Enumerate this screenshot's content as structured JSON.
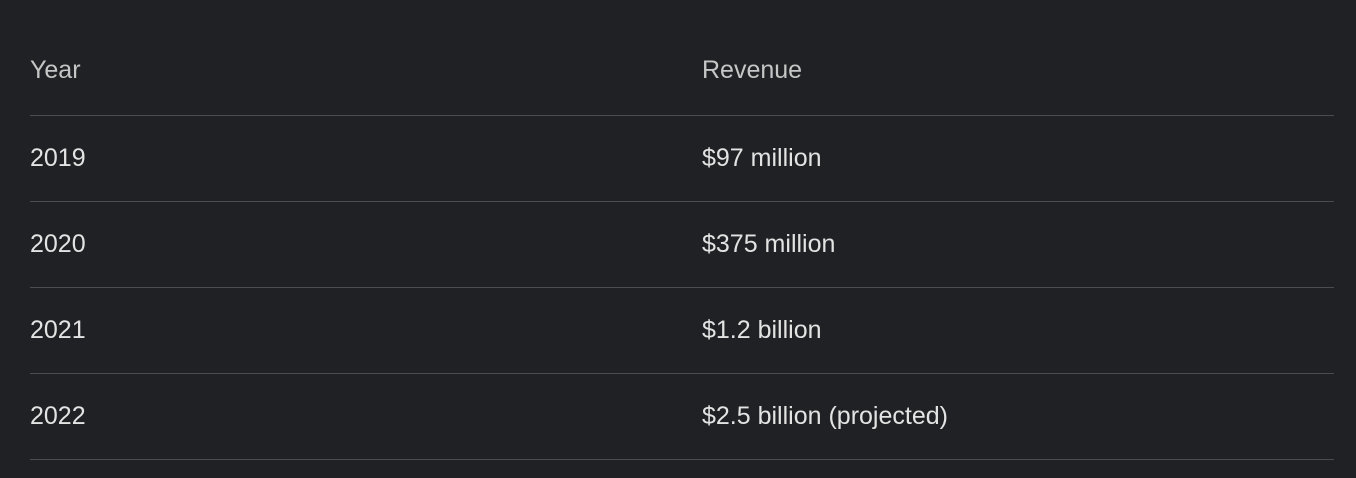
{
  "table": {
    "header": [
      "Year",
      "Revenue"
    ],
    "rows": [
      [
        "2019",
        "$97 million"
      ],
      [
        "2020",
        "$375 million"
      ],
      [
        "2021",
        "$1.2 billion"
      ],
      [
        "2022",
        "$2.5 billion (projected)"
      ]
    ]
  }
}
